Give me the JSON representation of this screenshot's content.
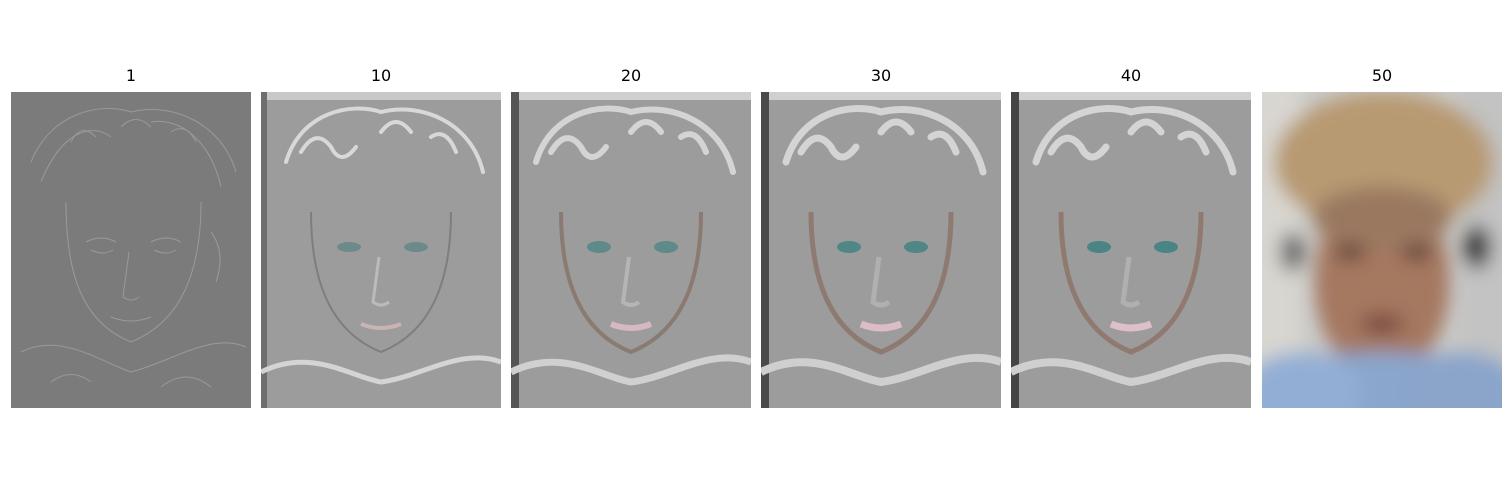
{
  "panels": [
    {
      "title": "1",
      "style": "edges"
    },
    {
      "title": "10",
      "style": "highpass"
    },
    {
      "title": "20",
      "style": "highpass"
    },
    {
      "title": "30",
      "style": "highpass"
    },
    {
      "title": "40",
      "style": "highpass"
    },
    {
      "title": "50",
      "style": "lowpass"
    }
  ],
  "colors": {
    "edges_gray": "#7b7b7b",
    "highpass_gray": "#9c9c9c",
    "skin": "#a57860",
    "hair": "#b89a72",
    "hoodie": "#8aa6cc"
  }
}
